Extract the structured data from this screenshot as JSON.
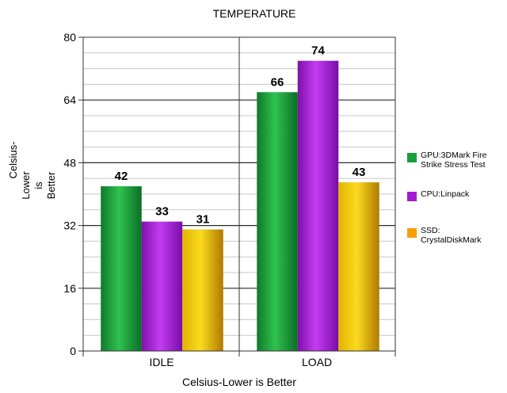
{
  "chart_data": {
    "type": "bar",
    "title": "TEMPERATURE",
    "xlabel": "Celsius-Lower is Better",
    "ylabel": "Celsius-Lower is Better",
    "ylabel_lines": [
      "Celsius-",
      "Lower",
      "is",
      "Better"
    ],
    "categories": [
      "IDLE",
      "LOAD"
    ],
    "ylim": [
      0,
      80
    ],
    "yticks": [
      0,
      16,
      32,
      48,
      64,
      80
    ],
    "ytick_labels": [
      "0",
      "16",
      "32",
      "48",
      "64",
      "80"
    ],
    "grid": true,
    "legend_position": "right",
    "series": [
      {
        "name": "GPU:3DMark Fire Strike Stress Test",
        "values": [
          42,
          66
        ],
        "labels": [
          "42",
          "66"
        ],
        "color": "#1a9e3a"
      },
      {
        "name": "CPU:Linpack",
        "values": [
          33,
          74
        ],
        "labels": [
          "33",
          "74"
        ],
        "color": "#a41ad4"
      },
      {
        "name": "SSD: CrystalDiskMark",
        "values": [
          31,
          43
        ],
        "labels": [
          "31",
          "43"
        ],
        "color": "#e0a800"
      }
    ]
  }
}
